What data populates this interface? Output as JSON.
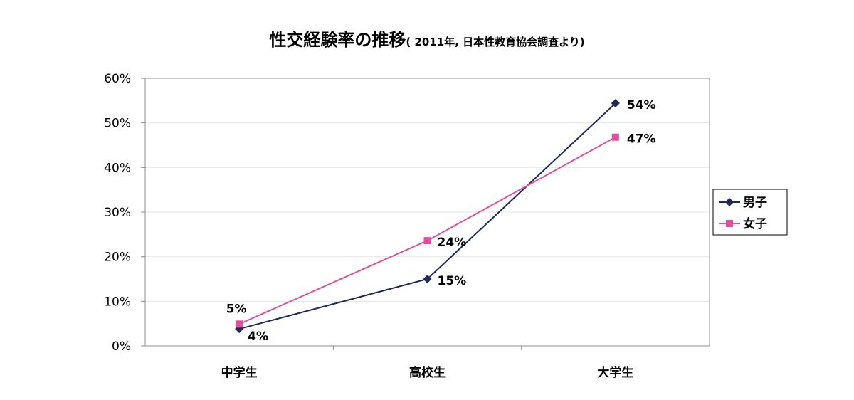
{
  "chart_data": {
    "type": "line",
    "title": "性交経験率の推移",
    "subtitle": "( 2011年, 日本性教育協会調査より)",
    "categories": [
      "中学生",
      "高校生",
      "大学生"
    ],
    "ylim": [
      0,
      60
    ],
    "yticks": [
      "0%",
      "10%",
      "20%",
      "30%",
      "40%",
      "50%",
      "60%"
    ],
    "grid": true,
    "legend_position": "right",
    "series": [
      {
        "name": "男子",
        "values": [
          3.8,
          15.0,
          54.4
        ],
        "labels": [
          "4%",
          "15%",
          "54%"
        ],
        "color": "#1f2a5c",
        "marker": "diamond"
      },
      {
        "name": "女子",
        "values": [
          4.9,
          23.6,
          46.8
        ],
        "labels": [
          "5%",
          "24%",
          "47%"
        ],
        "color": "#e0509a",
        "marker": "square"
      }
    ]
  }
}
